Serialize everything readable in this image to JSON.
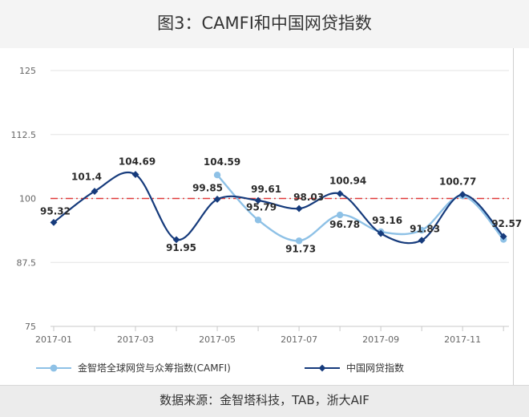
{
  "title": "图3：CAMFI和中国网贷指数",
  "source": "数据来源：金智塔科技，TAB，浙大AIF",
  "chart_data": {
    "type": "line",
    "title": "图3：CAMFI和中国网贷指数",
    "x": [
      "2017-01",
      "2017-02",
      "2017-03",
      "2017-04",
      "2017-05",
      "2017-06",
      "2017-07",
      "2017-08",
      "2017-09",
      "2017-10",
      "2017-11",
      "2017-12"
    ],
    "x_tick_labels": [
      "2017-01",
      "2017-03",
      "2017-05",
      "2017-07",
      "2017-09",
      "2017-11"
    ],
    "y_ticks": [
      "125",
      "112.5",
      "100",
      "87.5",
      "75"
    ],
    "ylim": [
      75,
      125
    ],
    "reference_line": {
      "value": 100,
      "color": "#e03a3a",
      "style": "dash-dot"
    },
    "series": [
      {
        "name": "金智塔全球网贷与众筹指数(CAMFI)",
        "color": "#8ec1e6",
        "marker": "circle",
        "values": [
          null,
          null,
          null,
          null,
          104.59,
          95.79,
          91.73,
          96.78,
          93.5,
          93.8,
          100.5,
          92.0
        ]
      },
      {
        "name": "中国网贷指数",
        "color": "#163b7c",
        "marker": "diamond",
        "values": [
          95.32,
          101.4,
          104.69,
          91.95,
          99.85,
          99.61,
          98.03,
          100.94,
          93.16,
          91.83,
          100.77,
          92.57
        ]
      }
    ],
    "data_labels": [
      {
        "text": "95.32",
        "index": 0,
        "value": 95.32
      },
      {
        "text": "101.4",
        "index": 1,
        "value": 101.4
      },
      {
        "text": "104.69",
        "index": 2,
        "value": 104.69
      },
      {
        "text": "91.95",
        "index": 3,
        "value": 91.95
      },
      {
        "text": "104.59",
        "index": 4,
        "value": 104.59
      },
      {
        "text": "99.85",
        "index": 4,
        "value": 99.85
      },
      {
        "text": "99.61",
        "index": 5,
        "value": 99.61
      },
      {
        "text": "95.79",
        "index": 5,
        "value": 95.79
      },
      {
        "text": "98.03",
        "index": 6,
        "value": 98.03
      },
      {
        "text": "91.73",
        "index": 6,
        "value": 91.73
      },
      {
        "text": "100.94",
        "index": 7,
        "value": 100.94
      },
      {
        "text": "96.78",
        "index": 7,
        "value": 96.78
      },
      {
        "text": "93.16",
        "index": 8,
        "value": 93.16
      },
      {
        "text": "91.83",
        "index": 9,
        "value": 91.83
      },
      {
        "text": "100.77",
        "index": 10,
        "value": 100.77
      },
      {
        "text": "92.57",
        "index": 11,
        "value": 92.57
      }
    ],
    "legend_position": "bottom"
  }
}
